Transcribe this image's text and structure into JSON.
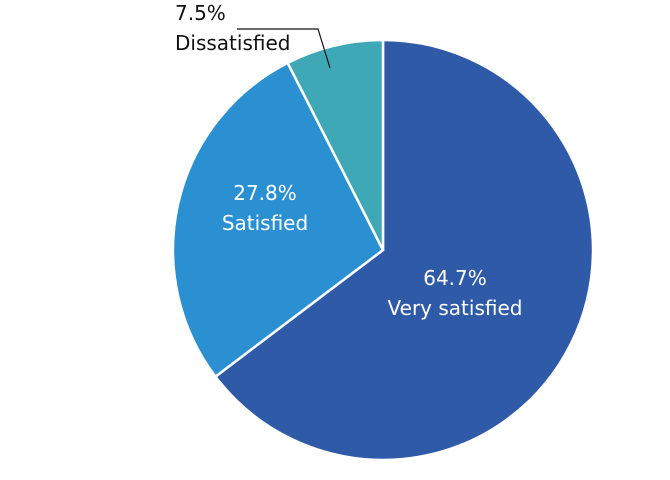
{
  "chart_data": {
    "type": "pie",
    "categories": [
      "Very satisfied",
      "Satisfied",
      "Dissatisfied"
    ],
    "values": [
      64.7,
      27.8,
      7.5
    ],
    "value_labels": [
      "64.7%",
      "27.8%",
      "7.5%"
    ],
    "colors": [
      "#2e5aa8",
      "#2a90d2",
      "#3fa8b6"
    ]
  }
}
